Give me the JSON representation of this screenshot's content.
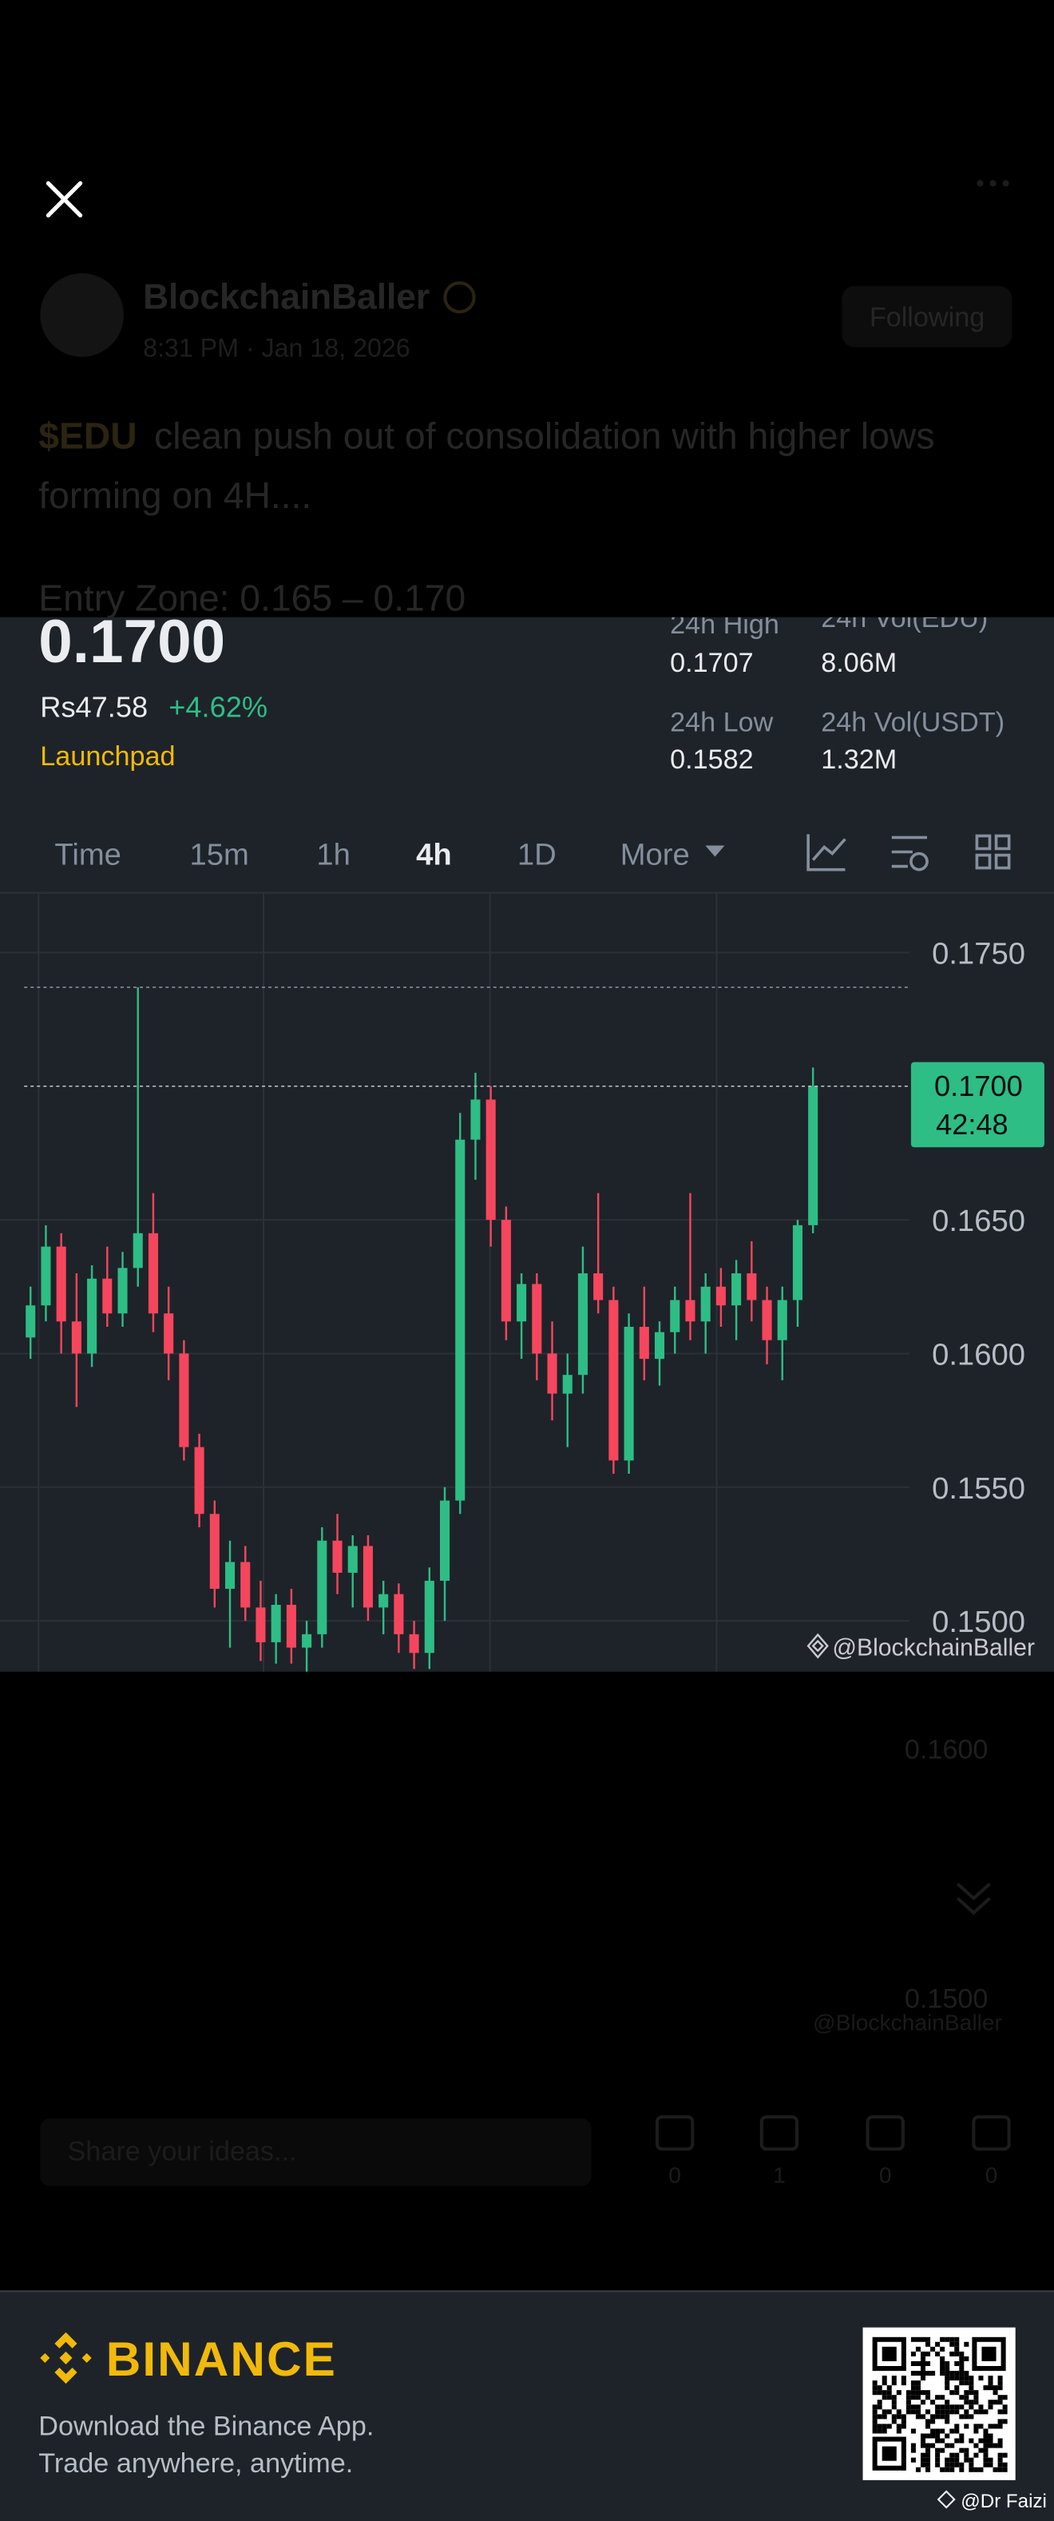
{
  "post_overlay": {
    "author": "BlockchainBaller",
    "time": "8:31 PM · Jan 18, 2026",
    "button": "Following",
    "text_highlight": "$EDU",
    "text_line1": "clean push out of consolidation with higher lows",
    "text_line2": "forming on 4H....",
    "entry": "Entry Zone: 0.165 – 0.170"
  },
  "ticker": {
    "price": "0.1700",
    "fiat": "Rs47.58",
    "change": "+4.62%",
    "tag": "Launchpad",
    "stats": [
      {
        "label": "24h High",
        "value": "0.1707"
      },
      {
        "label": "24h Vol(EDU)",
        "value": "8.06M"
      },
      {
        "label": "24h Low",
        "value": "0.1582"
      },
      {
        "label": "24h Vol(USDT)",
        "value": "1.32M"
      }
    ]
  },
  "tabs": [
    "Time",
    "15m",
    "1h",
    "4h",
    "1D",
    "More"
  ],
  "active_tab": 3,
  "chart_data": {
    "type": "candlestick",
    "ylim": [
      0.1481,
      0.1772
    ],
    "yticks": [
      {
        "value": 0.175,
        "label": "0.1750"
      },
      {
        "value": 0.165,
        "label": "0.1650"
      },
      {
        "value": 0.16,
        "label": "0.1600"
      },
      {
        "value": 0.155,
        "label": "0.1550"
      },
      {
        "value": 0.15,
        "label": "0.1500"
      }
    ],
    "grid": true,
    "up_color": "#2ebd85",
    "down_color": "#f6465d",
    "last_price": {
      "value": 0.17,
      "label": "0.1700"
    },
    "countdown": "42:48",
    "watermark": "@BlockchainBaller",
    "candles": [
      {
        "o": 0.1606,
        "h": 0.1625,
        "l": 0.1598,
        "c": 0.1618
      },
      {
        "o": 0.1618,
        "h": 0.1648,
        "l": 0.1612,
        "c": 0.164
      },
      {
        "o": 0.164,
        "h": 0.1645,
        "l": 0.16,
        "c": 0.1612
      },
      {
        "o": 0.1612,
        "h": 0.163,
        "l": 0.158,
        "c": 0.16
      },
      {
        "o": 0.16,
        "h": 0.1633,
        "l": 0.1595,
        "c": 0.1628
      },
      {
        "o": 0.1628,
        "h": 0.164,
        "l": 0.161,
        "c": 0.1615
      },
      {
        "o": 0.1615,
        "h": 0.1638,
        "l": 0.161,
        "c": 0.1632
      },
      {
        "o": 0.1632,
        "h": 0.1737,
        "l": 0.1625,
        "c": 0.1645
      },
      {
        "o": 0.1645,
        "h": 0.166,
        "l": 0.1608,
        "c": 0.1615
      },
      {
        "o": 0.1615,
        "h": 0.1625,
        "l": 0.159,
        "c": 0.16
      },
      {
        "o": 0.16,
        "h": 0.1605,
        "l": 0.156,
        "c": 0.1565
      },
      {
        "o": 0.1565,
        "h": 0.157,
        "l": 0.1535,
        "c": 0.154
      },
      {
        "o": 0.154,
        "h": 0.1545,
        "l": 0.1505,
        "c": 0.1512
      },
      {
        "o": 0.1512,
        "h": 0.153,
        "l": 0.149,
        "c": 0.1522
      },
      {
        "o": 0.1522,
        "h": 0.1528,
        "l": 0.15,
        "c": 0.1505
      },
      {
        "o": 0.1505,
        "h": 0.1515,
        "l": 0.1485,
        "c": 0.1492
      },
      {
        "o": 0.1492,
        "h": 0.151,
        "l": 0.1484,
        "c": 0.1506
      },
      {
        "o": 0.1506,
        "h": 0.1512,
        "l": 0.1484,
        "c": 0.149
      },
      {
        "o": 0.149,
        "h": 0.15,
        "l": 0.1481,
        "c": 0.1495
      },
      {
        "o": 0.1495,
        "h": 0.1535,
        "l": 0.149,
        "c": 0.153
      },
      {
        "o": 0.153,
        "h": 0.154,
        "l": 0.151,
        "c": 0.1518
      },
      {
        "o": 0.1518,
        "h": 0.1532,
        "l": 0.1505,
        "c": 0.1528
      },
      {
        "o": 0.1528,
        "h": 0.1532,
        "l": 0.15,
        "c": 0.1505
      },
      {
        "o": 0.1505,
        "h": 0.1515,
        "l": 0.1495,
        "c": 0.151
      },
      {
        "o": 0.151,
        "h": 0.1514,
        "l": 0.1488,
        "c": 0.1495
      },
      {
        "o": 0.1495,
        "h": 0.15,
        "l": 0.1482,
        "c": 0.1488
      },
      {
        "o": 0.1488,
        "h": 0.152,
        "l": 0.1482,
        "c": 0.1515
      },
      {
        "o": 0.1515,
        "h": 0.155,
        "l": 0.15,
        "c": 0.1545
      },
      {
        "o": 0.1545,
        "h": 0.169,
        "l": 0.154,
        "c": 0.168
      },
      {
        "o": 0.168,
        "h": 0.1705,
        "l": 0.1665,
        "c": 0.1695
      },
      {
        "o": 0.1695,
        "h": 0.17,
        "l": 0.164,
        "c": 0.165
      },
      {
        "o": 0.165,
        "h": 0.1655,
        "l": 0.1605,
        "c": 0.1612
      },
      {
        "o": 0.1612,
        "h": 0.163,
        "l": 0.1598,
        "c": 0.1626
      },
      {
        "o": 0.1626,
        "h": 0.163,
        "l": 0.159,
        "c": 0.16
      },
      {
        "o": 0.16,
        "h": 0.1612,
        "l": 0.1575,
        "c": 0.1585
      },
      {
        "o": 0.1585,
        "h": 0.16,
        "l": 0.1565,
        "c": 0.1592
      },
      {
        "o": 0.1592,
        "h": 0.164,
        "l": 0.1585,
        "c": 0.163
      },
      {
        "o": 0.163,
        "h": 0.166,
        "l": 0.1615,
        "c": 0.162
      },
      {
        "o": 0.162,
        "h": 0.1625,
        "l": 0.1555,
        "c": 0.156
      },
      {
        "o": 0.156,
        "h": 0.1615,
        "l": 0.1555,
        "c": 0.161
      },
      {
        "o": 0.161,
        "h": 0.1625,
        "l": 0.159,
        "c": 0.1598
      },
      {
        "o": 0.1598,
        "h": 0.1612,
        "l": 0.1588,
        "c": 0.1608
      },
      {
        "o": 0.1608,
        "h": 0.1625,
        "l": 0.16,
        "c": 0.162
      },
      {
        "o": 0.162,
        "h": 0.166,
        "l": 0.1605,
        "c": 0.1612
      },
      {
        "o": 0.1612,
        "h": 0.163,
        "l": 0.16,
        "c": 0.1625
      },
      {
        "o": 0.1625,
        "h": 0.1632,
        "l": 0.161,
        "c": 0.1618
      },
      {
        "o": 0.1618,
        "h": 0.1635,
        "l": 0.1605,
        "c": 0.163
      },
      {
        "o": 0.163,
        "h": 0.1642,
        "l": 0.1612,
        "c": 0.162
      },
      {
        "o": 0.162,
        "h": 0.1625,
        "l": 0.1596,
        "c": 0.1605
      },
      {
        "o": 0.1605,
        "h": 0.1625,
        "l": 0.159,
        "c": 0.162
      },
      {
        "o": 0.162,
        "h": 0.165,
        "l": 0.161,
        "c": 0.1648
      },
      {
        "o": 0.1648,
        "h": 0.1707,
        "l": 0.1645,
        "c": 0.17
      }
    ]
  },
  "background": {
    "ticks": [
      "0.1600",
      "0.1500"
    ],
    "watermark": "@BlockchainBaller",
    "share": "Share your ideas...",
    "counts": [
      "0",
      "1",
      "0",
      "0"
    ]
  },
  "footer": {
    "brand": "BINANCE",
    "line1": "Download the Binance App.",
    "line2": "Trade anywhere, anytime.",
    "credit": "@Dr Faizi"
  }
}
